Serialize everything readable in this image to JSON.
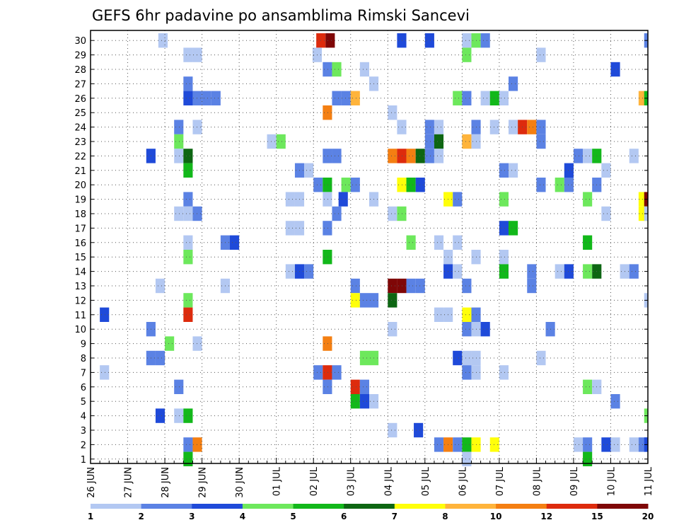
{
  "chart_data": {
    "type": "heatmap",
    "title": "GEFS 6hr padavine po ansamblima Rimski Sancevi",
    "x_labels": [
      "26 JUN",
      "27 JUN",
      "28 JUN",
      "29 JUN",
      "30 JUN",
      "01 JUL",
      "02 JUL",
      "03 JUL",
      "04 JUL",
      "05 JUL",
      "06 JUL",
      "07 JUL",
      "08 JUL",
      "09 JUL",
      "10 JUL",
      "11 JUL"
    ],
    "y_labels": [
      1,
      2,
      3,
      4,
      5,
      6,
      7,
      8,
      9,
      10,
      11,
      12,
      13,
      14,
      15,
      16,
      17,
      18,
      19,
      20,
      21,
      22,
      23,
      24,
      25,
      26,
      27,
      28,
      29,
      30
    ],
    "legend_levels": [
      "1",
      "2",
      "3",
      "4",
      "5",
      "6",
      "7",
      "8",
      "10",
      "12",
      "15",
      "20"
    ],
    "colors": [
      "#b3c8f2",
      "#5b82e4",
      "#1f4ad9",
      "#6de85c",
      "#12b81a",
      "#0d6612",
      "#ffff0a",
      "#ffb43b",
      "#f47f12",
      "#dd2b0d",
      "#7f0707"
    ],
    "cells": [
      {
        "t": 7.3,
        "m": 30,
        "c": 0
      },
      {
        "t": 24.3,
        "m": 30,
        "c": 9
      },
      {
        "t": 25.3,
        "m": 30,
        "c": 10
      },
      {
        "t": 33.0,
        "m": 30,
        "c": 2
      },
      {
        "t": 36.0,
        "m": 30,
        "c": 2
      },
      {
        "t": 40.0,
        "m": 30,
        "c": 0
      },
      {
        "t": 41.0,
        "m": 30,
        "c": 3
      },
      {
        "t": 42.0,
        "m": 30,
        "c": 1
      },
      {
        "t": 59.6,
        "m": 30,
        "c": 1
      },
      {
        "t": 10.0,
        "m": 29,
        "c": 0
      },
      {
        "t": 11.0,
        "m": 29,
        "c": 0
      },
      {
        "t": 23.9,
        "m": 29,
        "c": 0
      },
      {
        "t": 40.0,
        "m": 29,
        "c": 3
      },
      {
        "t": 48.0,
        "m": 29,
        "c": 0
      },
      {
        "t": 25.0,
        "m": 28,
        "c": 1
      },
      {
        "t": 26.0,
        "m": 28,
        "c": 3
      },
      {
        "t": 29.0,
        "m": 28,
        "c": 0
      },
      {
        "t": 56.0,
        "m": 28,
        "c": 2
      },
      {
        "t": 10.0,
        "m": 27,
        "c": 1
      },
      {
        "t": 30.0,
        "m": 27,
        "c": 0
      },
      {
        "t": 45.0,
        "m": 27,
        "c": 1
      },
      {
        "t": 10.0,
        "m": 26,
        "c": 2
      },
      {
        "t": 11.0,
        "m": 26,
        "c": 1
      },
      {
        "t": 12.0,
        "m": 26,
        "c": 1
      },
      {
        "t": 13.0,
        "m": 26,
        "c": 1
      },
      {
        "t": 26.0,
        "m": 26,
        "c": 1
      },
      {
        "t": 27.0,
        "m": 26,
        "c": 1
      },
      {
        "t": 28.0,
        "m": 26,
        "c": 7
      },
      {
        "t": 39.0,
        "m": 26,
        "c": 3
      },
      {
        "t": 40.0,
        "m": 26,
        "c": 1
      },
      {
        "t": 42.0,
        "m": 26,
        "c": 0
      },
      {
        "t": 43.0,
        "m": 26,
        "c": 4
      },
      {
        "t": 44.0,
        "m": 26,
        "c": 0
      },
      {
        "t": 59.0,
        "m": 26,
        "c": 7
      },
      {
        "t": 59.6,
        "m": 26,
        "c": 4
      },
      {
        "t": 25.0,
        "m": 25,
        "c": 8
      },
      {
        "t": 32.0,
        "m": 25,
        "c": 0
      },
      {
        "t": 9.0,
        "m": 24,
        "c": 1
      },
      {
        "t": 11.0,
        "m": 24,
        "c": 0
      },
      {
        "t": 33.0,
        "m": 24,
        "c": 0
      },
      {
        "t": 36.0,
        "m": 24,
        "c": 1
      },
      {
        "t": 37.0,
        "m": 24,
        "c": 0
      },
      {
        "t": 41.0,
        "m": 24,
        "c": 1
      },
      {
        "t": 43.0,
        "m": 24,
        "c": 0
      },
      {
        "t": 45.0,
        "m": 24,
        "c": 0
      },
      {
        "t": 46.0,
        "m": 24,
        "c": 9
      },
      {
        "t": 47.0,
        "m": 24,
        "c": 8
      },
      {
        "t": 48.0,
        "m": 24,
        "c": 1
      },
      {
        "t": 9.0,
        "m": 23,
        "c": 3
      },
      {
        "t": 19.0,
        "m": 23,
        "c": 0
      },
      {
        "t": 20.0,
        "m": 23,
        "c": 3
      },
      {
        "t": 36.0,
        "m": 23,
        "c": 1
      },
      {
        "t": 37.0,
        "m": 23,
        "c": 5
      },
      {
        "t": 40.0,
        "m": 23,
        "c": 7
      },
      {
        "t": 41.0,
        "m": 23,
        "c": 0
      },
      {
        "t": 48.0,
        "m": 23,
        "c": 1
      },
      {
        "t": 6.0,
        "m": 22,
        "c": 2
      },
      {
        "t": 9.0,
        "m": 22,
        "c": 0
      },
      {
        "t": 10.0,
        "m": 22,
        "c": 5
      },
      {
        "t": 25.0,
        "m": 22,
        "c": 1
      },
      {
        "t": 26.0,
        "m": 22,
        "c": 1
      },
      {
        "t": 32.0,
        "m": 22,
        "c": 8
      },
      {
        "t": 33.0,
        "m": 22,
        "c": 9
      },
      {
        "t": 34.0,
        "m": 22,
        "c": 8
      },
      {
        "t": 35.0,
        "m": 22,
        "c": 5
      },
      {
        "t": 36.0,
        "m": 22,
        "c": 1
      },
      {
        "t": 37.0,
        "m": 22,
        "c": 0
      },
      {
        "t": 52.0,
        "m": 22,
        "c": 1
      },
      {
        "t": 53.0,
        "m": 22,
        "c": 0
      },
      {
        "t": 54.0,
        "m": 22,
        "c": 4
      },
      {
        "t": 58.0,
        "m": 22,
        "c": 0
      },
      {
        "t": 10.0,
        "m": 21,
        "c": 4
      },
      {
        "t": 22.0,
        "m": 21,
        "c": 1
      },
      {
        "t": 23.0,
        "m": 21,
        "c": 0
      },
      {
        "t": 44.0,
        "m": 21,
        "c": 1
      },
      {
        "t": 45.0,
        "m": 21,
        "c": 0
      },
      {
        "t": 51.0,
        "m": 21,
        "c": 2
      },
      {
        "t": 55.0,
        "m": 21,
        "c": 0
      },
      {
        "t": 24.0,
        "m": 20,
        "c": 1
      },
      {
        "t": 25.0,
        "m": 20,
        "c": 4
      },
      {
        "t": 27.0,
        "m": 20,
        "c": 3
      },
      {
        "t": 28.0,
        "m": 20,
        "c": 1
      },
      {
        "t": 33.0,
        "m": 20,
        "c": 6
      },
      {
        "t": 34.0,
        "m": 20,
        "c": 4
      },
      {
        "t": 35.0,
        "m": 20,
        "c": 2
      },
      {
        "t": 48.0,
        "m": 20,
        "c": 1
      },
      {
        "t": 50.0,
        "m": 20,
        "c": 3
      },
      {
        "t": 51.0,
        "m": 20,
        "c": 1
      },
      {
        "t": 54.0,
        "m": 20,
        "c": 1
      },
      {
        "t": 10.0,
        "m": 19,
        "c": 1
      },
      {
        "t": 21.0,
        "m": 19,
        "c": 0
      },
      {
        "t": 22.0,
        "m": 19,
        "c": 0
      },
      {
        "t": 25.0,
        "m": 19,
        "c": 0
      },
      {
        "t": 26.7,
        "m": 19,
        "c": 2
      },
      {
        "t": 30.0,
        "m": 19,
        "c": 0
      },
      {
        "t": 38.0,
        "m": 19,
        "c": 6
      },
      {
        "t": 39.0,
        "m": 19,
        "c": 1
      },
      {
        "t": 44.0,
        "m": 19,
        "c": 3
      },
      {
        "t": 53.0,
        "m": 19,
        "c": 3
      },
      {
        "t": 59.0,
        "m": 19,
        "c": 6
      },
      {
        "t": 59.6,
        "m": 19,
        "c": 10
      },
      {
        "t": 9.0,
        "m": 18,
        "c": 0
      },
      {
        "t": 10.0,
        "m": 18,
        "c": 0
      },
      {
        "t": 11.0,
        "m": 18,
        "c": 1
      },
      {
        "t": 26.0,
        "m": 18,
        "c": 1
      },
      {
        "t": 32.0,
        "m": 18,
        "c": 0
      },
      {
        "t": 33.0,
        "m": 18,
        "c": 3
      },
      {
        "t": 55.0,
        "m": 18,
        "c": 0
      },
      {
        "t": 59.0,
        "m": 18,
        "c": 6
      },
      {
        "t": 59.6,
        "m": 18,
        "c": 0
      },
      {
        "t": 21.0,
        "m": 17,
        "c": 0
      },
      {
        "t": 22.0,
        "m": 17,
        "c": 0
      },
      {
        "t": 25.0,
        "m": 17,
        "c": 1
      },
      {
        "t": 44.0,
        "m": 17,
        "c": 2
      },
      {
        "t": 45.0,
        "m": 17,
        "c": 4
      },
      {
        "t": 10.0,
        "m": 16,
        "c": 0
      },
      {
        "t": 14.0,
        "m": 16,
        "c": 1
      },
      {
        "t": 15.0,
        "m": 16,
        "c": 2
      },
      {
        "t": 34.0,
        "m": 16,
        "c": 3
      },
      {
        "t": 37.0,
        "m": 16,
        "c": 0
      },
      {
        "t": 39.0,
        "m": 16,
        "c": 0
      },
      {
        "t": 53.0,
        "m": 16,
        "c": 4
      },
      {
        "t": 10.0,
        "m": 15,
        "c": 3
      },
      {
        "t": 25.0,
        "m": 15,
        "c": 4
      },
      {
        "t": 38.0,
        "m": 15,
        "c": 0
      },
      {
        "t": 41.0,
        "m": 15,
        "c": 0
      },
      {
        "t": 44.0,
        "m": 15,
        "c": 0
      },
      {
        "t": 21.0,
        "m": 14,
        "c": 0
      },
      {
        "t": 22.0,
        "m": 14,
        "c": 2
      },
      {
        "t": 23.0,
        "m": 14,
        "c": 1
      },
      {
        "t": 38.0,
        "m": 14,
        "c": 2
      },
      {
        "t": 39.0,
        "m": 14,
        "c": 0
      },
      {
        "t": 44.0,
        "m": 14,
        "c": 4
      },
      {
        "t": 47.0,
        "m": 14,
        "c": 1
      },
      {
        "t": 50.0,
        "m": 14,
        "c": 0
      },
      {
        "t": 51.0,
        "m": 14,
        "c": 2
      },
      {
        "t": 53.0,
        "m": 14,
        "c": 3
      },
      {
        "t": 54.0,
        "m": 14,
        "c": 5
      },
      {
        "t": 57.0,
        "m": 14,
        "c": 0
      },
      {
        "t": 58.0,
        "m": 14,
        "c": 1
      },
      {
        "t": 7.0,
        "m": 13,
        "c": 0
      },
      {
        "t": 14.0,
        "m": 13,
        "c": 0
      },
      {
        "t": 28.0,
        "m": 13,
        "c": 1
      },
      {
        "t": 32.0,
        "m": 13,
        "c": 10
      },
      {
        "t": 33.0,
        "m": 13,
        "c": 10
      },
      {
        "t": 34.0,
        "m": 13,
        "c": 1
      },
      {
        "t": 35.0,
        "m": 13,
        "c": 1
      },
      {
        "t": 40.0,
        "m": 13,
        "c": 1
      },
      {
        "t": 47.0,
        "m": 13,
        "c": 1
      },
      {
        "t": 10.0,
        "m": 12,
        "c": 3
      },
      {
        "t": 28.0,
        "m": 12,
        "c": 6
      },
      {
        "t": 29.0,
        "m": 12,
        "c": 1
      },
      {
        "t": 30.0,
        "m": 12,
        "c": 1
      },
      {
        "t": 32.0,
        "m": 12,
        "c": 5
      },
      {
        "t": 59.6,
        "m": 12,
        "c": 0
      },
      {
        "t": 1.0,
        "m": 11,
        "c": 2
      },
      {
        "t": 10.0,
        "m": 11,
        "c": 9
      },
      {
        "t": 37.0,
        "m": 11,
        "c": 0
      },
      {
        "t": 38.0,
        "m": 11,
        "c": 0
      },
      {
        "t": 40.0,
        "m": 11,
        "c": 6
      },
      {
        "t": 41.0,
        "m": 11,
        "c": 1
      },
      {
        "t": 6.0,
        "m": 10,
        "c": 1
      },
      {
        "t": 32.0,
        "m": 10,
        "c": 0
      },
      {
        "t": 40.0,
        "m": 10,
        "c": 1
      },
      {
        "t": 41.0,
        "m": 10,
        "c": 0
      },
      {
        "t": 42.0,
        "m": 10,
        "c": 2
      },
      {
        "t": 49.0,
        "m": 10,
        "c": 1
      },
      {
        "t": 8.0,
        "m": 9,
        "c": 3
      },
      {
        "t": 11.0,
        "m": 9,
        "c": 0
      },
      {
        "t": 25.0,
        "m": 9,
        "c": 8
      },
      {
        "t": 6.0,
        "m": 8,
        "c": 1
      },
      {
        "t": 7.0,
        "m": 8,
        "c": 1
      },
      {
        "t": 29.0,
        "m": 8,
        "c": 3
      },
      {
        "t": 30.0,
        "m": 8,
        "c": 3
      },
      {
        "t": 39.0,
        "m": 8,
        "c": 2
      },
      {
        "t": 40.0,
        "m": 8,
        "c": 0
      },
      {
        "t": 41.0,
        "m": 8,
        "c": 0
      },
      {
        "t": 48.0,
        "m": 8,
        "c": 0
      },
      {
        "t": 1.0,
        "m": 7,
        "c": 0
      },
      {
        "t": 24.0,
        "m": 7,
        "c": 1
      },
      {
        "t": 25.0,
        "m": 7,
        "c": 9
      },
      {
        "t": 26.0,
        "m": 7,
        "c": 1
      },
      {
        "t": 40.0,
        "m": 7,
        "c": 1
      },
      {
        "t": 41.0,
        "m": 7,
        "c": 0
      },
      {
        "t": 44.0,
        "m": 7,
        "c": 0
      },
      {
        "t": 9.0,
        "m": 6,
        "c": 1
      },
      {
        "t": 25.0,
        "m": 6,
        "c": 1
      },
      {
        "t": 28.0,
        "m": 6,
        "c": 9
      },
      {
        "t": 29.0,
        "m": 6,
        "c": 1
      },
      {
        "t": 53.0,
        "m": 6,
        "c": 3
      },
      {
        "t": 54.0,
        "m": 6,
        "c": 0
      },
      {
        "t": 28.0,
        "m": 5,
        "c": 4
      },
      {
        "t": 29.0,
        "m": 5,
        "c": 2
      },
      {
        "t": 30.0,
        "m": 5,
        "c": 0
      },
      {
        "t": 56.0,
        "m": 5,
        "c": 1
      },
      {
        "t": 7.0,
        "m": 4,
        "c": 2
      },
      {
        "t": 9.0,
        "m": 4,
        "c": 0
      },
      {
        "t": 10.0,
        "m": 4,
        "c": 4
      },
      {
        "t": 59.6,
        "m": 4,
        "c": 3
      },
      {
        "t": 32.0,
        "m": 3,
        "c": 0
      },
      {
        "t": 34.8,
        "m": 3,
        "c": 2
      },
      {
        "t": 10.0,
        "m": 2,
        "c": 1
      },
      {
        "t": 11.0,
        "m": 2,
        "c": 8
      },
      {
        "t": 37.0,
        "m": 2,
        "c": 1
      },
      {
        "t": 38.0,
        "m": 2,
        "c": 8
      },
      {
        "t": 39.0,
        "m": 2,
        "c": 1
      },
      {
        "t": 40.0,
        "m": 2,
        "c": 4
      },
      {
        "t": 41.0,
        "m": 2,
        "c": 6
      },
      {
        "t": 43.0,
        "m": 2,
        "c": 6
      },
      {
        "t": 52.0,
        "m": 2,
        "c": 0
      },
      {
        "t": 53.0,
        "m": 2,
        "c": 1
      },
      {
        "t": 55.0,
        "m": 2,
        "c": 2
      },
      {
        "t": 56.0,
        "m": 2,
        "c": 0
      },
      {
        "t": 58.0,
        "m": 2,
        "c": 0
      },
      {
        "t": 59.0,
        "m": 2,
        "c": 1
      },
      {
        "t": 59.6,
        "m": 2,
        "c": 2
      },
      {
        "t": 10.0,
        "m": 1,
        "c": 4
      },
      {
        "t": 40.0,
        "m": 1,
        "c": 0
      },
      {
        "t": 53.0,
        "m": 1,
        "c": 4
      }
    ]
  }
}
